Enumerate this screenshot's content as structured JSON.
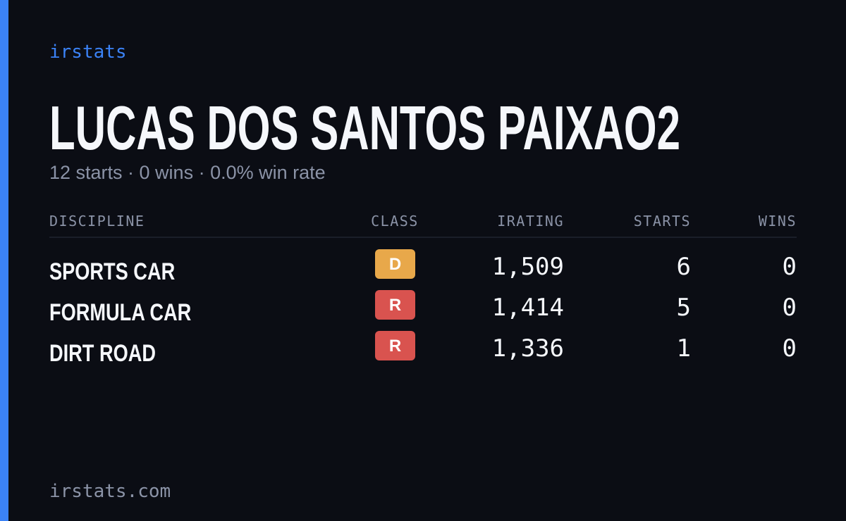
{
  "brand": "irstats",
  "title": "LUCAS DOS SANTOS PAIXAO2",
  "summary": "12 starts · 0 wins · 0.0% win rate",
  "table": {
    "headers": [
      "DISCIPLINE",
      "CLASS",
      "IRATING",
      "STARTS",
      "WINS"
    ],
    "rows": [
      [
        "SPORTS CAR",
        "D",
        "1,509",
        "6",
        "0"
      ],
      [
        "FORMULA CAR",
        "R",
        "1,414",
        "5",
        "0"
      ],
      [
        "DIRT ROAD",
        "R",
        "1,336",
        "1",
        "0"
      ]
    ]
  },
  "footer": "irstats.com"
}
